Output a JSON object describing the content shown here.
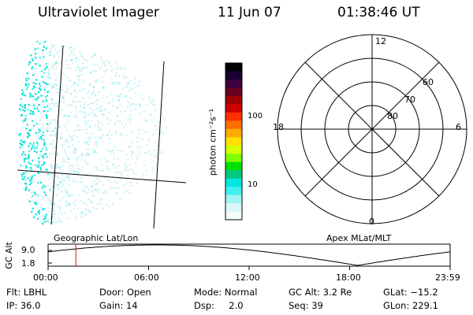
{
  "header": {
    "title": "Ultraviolet Imager",
    "date": "11 Jun 07",
    "time": "01:38:46 UT"
  },
  "colorbar": {
    "unit_label": "photon cm⁻²s⁻¹",
    "ticks": [
      "100",
      "10"
    ],
    "colors": [
      "#000000",
      "#1a0030",
      "#400040",
      "#6a0020",
      "#a00000",
      "#d00000",
      "#ff3000",
      "#ff7000",
      "#ffaa00",
      "#ffe000",
      "#d8ff00",
      "#80ff00",
      "#00e000",
      "#00c880",
      "#00e8e0",
      "#40f0f0",
      "#a0f4f4",
      "#d8f8f8",
      "#f4fcfc"
    ]
  },
  "polar": {
    "mlt_labels": {
      "top": "12",
      "left": "18",
      "right": "6",
      "bottom": "0"
    },
    "lat_labels": [
      "60",
      "70",
      "80"
    ]
  },
  "orbit": {
    "axis_label": "GC Alt",
    "y_ticks": [
      "9.0",
      "1.8"
    ],
    "left_caption": "Geographic Lat/Lon",
    "right_caption": "Apex MLat/MLT",
    "x_ticks": [
      "00:00",
      "06:00",
      "12:00",
      "18:00",
      "23:59"
    ],
    "current_time_fraction": 0.069
  },
  "info": {
    "row1": {
      "flt": "Flt: LBHL",
      "door": "Door: Open",
      "mode": "Mode: Normal",
      "gcalt": "GC Alt: 3.2 Re",
      "glat": "GLat: −15.2"
    },
    "row2": {
      "ip": "IP: 36.0",
      "gain": "Gain: 14",
      "dsp": "Dsp:     2.0",
      "seq": "Seq: 39",
      "glon": "GLon: 229.1"
    }
  }
}
